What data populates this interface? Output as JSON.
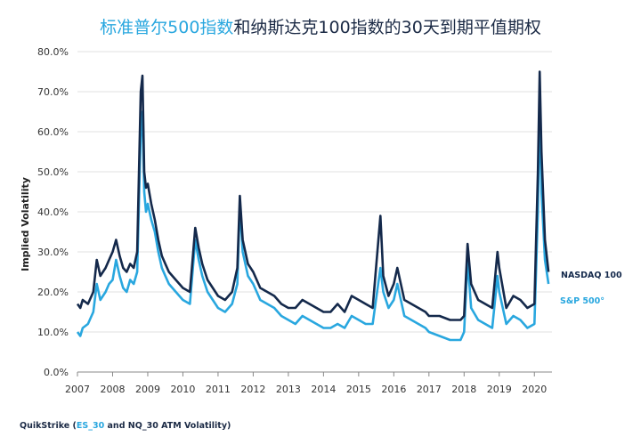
{
  "title": {
    "highlight": "标准普尔500指数",
    "rest": "和纳斯达克100指数的30天到期平值期权"
  },
  "source": {
    "prefix": "QuikStrike (",
    "highlight": "ES_30",
    "suffix": " and NQ_30 ATM Volatility)"
  },
  "chart_data": {
    "type": "line",
    "ylabel": "Implied Volatility",
    "xlim": [
      2007.0,
      2020.5
    ],
    "ylim": [
      0,
      80
    ],
    "y_ticks": [
      "0.0%",
      "10.0%",
      "20.0%",
      "30.0%",
      "40.0%",
      "50.0%",
      "60.0%",
      "70.0%",
      "80.0%"
    ],
    "x_ticks": [
      "2007",
      "2008",
      "2009",
      "2010",
      "2011",
      "2012",
      "2013",
      "2014",
      "2015",
      "2016",
      "2017",
      "2018",
      "2019",
      "2020"
    ],
    "grid": "horizontal",
    "legend_placement": "right-end-of-lines",
    "series": [
      {
        "name": "S&P 500°",
        "color": "#29a7df",
        "x": [
          2007.0,
          2007.08,
          2007.15,
          2007.3,
          2007.45,
          2007.55,
          2007.65,
          2007.8,
          2007.9,
          2008.0,
          2008.1,
          2008.2,
          2008.3,
          2008.4,
          2008.5,
          2008.6,
          2008.7,
          2008.8,
          2008.85,
          2008.9,
          2008.95,
          2009.0,
          2009.1,
          2009.2,
          2009.3,
          2009.4,
          2009.5,
          2009.6,
          2009.8,
          2010.0,
          2010.2,
          2010.35,
          2010.45,
          2010.55,
          2010.7,
          2010.85,
          2011.0,
          2011.2,
          2011.4,
          2011.55,
          2011.62,
          2011.7,
          2011.85,
          2012.0,
          2012.2,
          2012.4,
          2012.6,
          2012.8,
          2013.0,
          2013.2,
          2013.4,
          2013.6,
          2013.8,
          2014.0,
          2014.2,
          2014.4,
          2014.6,
          2014.8,
          2015.0,
          2015.2,
          2015.4,
          2015.62,
          2015.7,
          2015.85,
          2016.0,
          2016.1,
          2016.3,
          2016.5,
          2016.7,
          2016.9,
          2017.0,
          2017.3,
          2017.6,
          2017.9,
          2018.0,
          2018.1,
          2018.2,
          2018.4,
          2018.6,
          2018.8,
          2018.95,
          2019.0,
          2019.2,
          2019.4,
          2019.6,
          2019.8,
          2020.0,
          2020.1,
          2020.15,
          2020.2,
          2020.3,
          2020.4
        ],
        "values": [
          10,
          9,
          11,
          12,
          15,
          22,
          18,
          20,
          22,
          23,
          28,
          24,
          21,
          20,
          23,
          22,
          25,
          60,
          65,
          45,
          40,
          42,
          38,
          35,
          30,
          26,
          24,
          22,
          20,
          18,
          17,
          33,
          28,
          24,
          20,
          18,
          16,
          15,
          17,
          22,
          42,
          30,
          24,
          22,
          18,
          17,
          16,
          14,
          13,
          12,
          14,
          13,
          12,
          11,
          11,
          12,
          11,
          14,
          13,
          12,
          12,
          26,
          20,
          16,
          18,
          22,
          14,
          13,
          12,
          11,
          10,
          9,
          8,
          8,
          10,
          28,
          16,
          13,
          12,
          11,
          24,
          20,
          12,
          14,
          13,
          11,
          12,
          40,
          70,
          45,
          28,
          22
        ]
      },
      {
        "name": "NASDAQ 100",
        "color": "#14294b",
        "x": [
          2007.0,
          2007.08,
          2007.15,
          2007.3,
          2007.45,
          2007.55,
          2007.65,
          2007.8,
          2007.9,
          2008.0,
          2008.1,
          2008.2,
          2008.3,
          2008.4,
          2008.5,
          2008.6,
          2008.7,
          2008.8,
          2008.85,
          2008.9,
          2008.95,
          2009.0,
          2009.1,
          2009.2,
          2009.3,
          2009.4,
          2009.5,
          2009.6,
          2009.8,
          2010.0,
          2010.2,
          2010.35,
          2010.45,
          2010.55,
          2010.7,
          2010.85,
          2011.0,
          2011.2,
          2011.4,
          2011.55,
          2011.62,
          2011.7,
          2011.85,
          2012.0,
          2012.2,
          2012.4,
          2012.6,
          2012.8,
          2013.0,
          2013.2,
          2013.4,
          2013.6,
          2013.8,
          2014.0,
          2014.2,
          2014.4,
          2014.6,
          2014.8,
          2015.0,
          2015.2,
          2015.4,
          2015.62,
          2015.7,
          2015.85,
          2016.0,
          2016.1,
          2016.3,
          2016.5,
          2016.7,
          2016.9,
          2017.0,
          2017.3,
          2017.6,
          2017.9,
          2018.0,
          2018.1,
          2018.2,
          2018.4,
          2018.6,
          2018.8,
          2018.95,
          2019.0,
          2019.2,
          2019.4,
          2019.6,
          2019.8,
          2020.0,
          2020.1,
          2020.15,
          2020.2,
          2020.3,
          2020.4
        ],
        "values": [
          17,
          16,
          18,
          17,
          20,
          28,
          24,
          26,
          28,
          30,
          33,
          29,
          26,
          25,
          27,
          26,
          30,
          70,
          74,
          50,
          46,
          47,
          42,
          38,
          33,
          29,
          27,
          25,
          23,
          21,
          20,
          36,
          31,
          27,
          23,
          21,
          19,
          18,
          20,
          26,
          44,
          33,
          27,
          25,
          21,
          20,
          19,
          17,
          16,
          16,
          18,
          17,
          16,
          15,
          15,
          17,
          15,
          19,
          18,
          17,
          16,
          39,
          24,
          19,
          22,
          26,
          18,
          17,
          16,
          15,
          14,
          14,
          13,
          13,
          14,
          32,
          22,
          18,
          17,
          16,
          30,
          26,
          16,
          19,
          18,
          16,
          17,
          50,
          75,
          55,
          33,
          25
        ]
      }
    ]
  }
}
